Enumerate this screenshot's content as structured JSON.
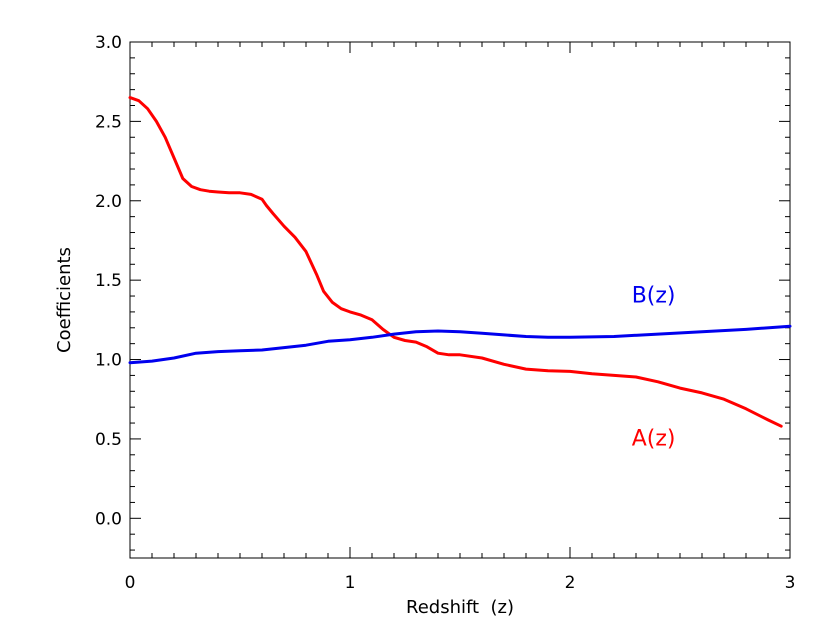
{
  "chart_data": {
    "type": "line",
    "title": "",
    "xlabel": "Redshift  (z)",
    "ylabel": "Coefficients",
    "xlim": [
      0,
      3
    ],
    "ylim": [
      -0.25,
      3.0
    ],
    "x_ticks": [
      "0",
      "1",
      "2",
      "3"
    ],
    "y_ticks": [
      "0.0",
      "0.5",
      "1.0",
      "1.5",
      "2.0",
      "2.5",
      "3.0"
    ],
    "grid": false,
    "series": [
      {
        "name": "A(z)",
        "color": "#ff0000",
        "x": [
          0.0,
          0.04,
          0.08,
          0.12,
          0.16,
          0.2,
          0.24,
          0.28,
          0.32,
          0.36,
          0.4,
          0.45,
          0.5,
          0.55,
          0.6,
          0.62,
          0.65,
          0.7,
          0.75,
          0.8,
          0.85,
          0.88,
          0.92,
          0.96,
          1.0,
          1.05,
          1.1,
          1.15,
          1.2,
          1.25,
          1.3,
          1.35,
          1.4,
          1.45,
          1.5,
          1.6,
          1.7,
          1.8,
          1.9,
          2.0,
          2.1,
          2.2,
          2.3,
          2.4,
          2.5,
          2.6,
          2.7,
          2.8,
          2.9,
          2.96
        ],
        "y": [
          2.65,
          2.63,
          2.58,
          2.5,
          2.4,
          2.27,
          2.14,
          2.09,
          2.07,
          2.06,
          2.055,
          2.05,
          2.05,
          2.04,
          2.01,
          1.97,
          1.92,
          1.84,
          1.77,
          1.68,
          1.53,
          1.43,
          1.36,
          1.32,
          1.3,
          1.28,
          1.25,
          1.19,
          1.14,
          1.12,
          1.11,
          1.08,
          1.04,
          1.03,
          1.03,
          1.01,
          0.97,
          0.94,
          0.93,
          0.925,
          0.91,
          0.9,
          0.89,
          0.86,
          0.82,
          0.79,
          0.75,
          0.69,
          0.62,
          0.58
        ]
      },
      {
        "name": "B(z)",
        "color": "#0000ee",
        "x": [
          0.0,
          0.1,
          0.2,
          0.3,
          0.4,
          0.5,
          0.6,
          0.7,
          0.8,
          0.9,
          1.0,
          1.1,
          1.2,
          1.3,
          1.4,
          1.5,
          1.6,
          1.7,
          1.8,
          1.9,
          2.0,
          2.2,
          2.4,
          2.6,
          2.8,
          3.0
        ],
        "y": [
          0.98,
          0.99,
          1.01,
          1.04,
          1.05,
          1.055,
          1.06,
          1.075,
          1.09,
          1.115,
          1.125,
          1.14,
          1.16,
          1.175,
          1.18,
          1.175,
          1.165,
          1.155,
          1.145,
          1.14,
          1.14,
          1.145,
          1.16,
          1.175,
          1.19,
          1.21
        ]
      }
    ],
    "annotations": [
      {
        "text": "B(z)",
        "x": 2.38,
        "y": 1.36,
        "color": "#0000ee"
      },
      {
        "text": "A(z)",
        "x": 2.38,
        "y": 0.46,
        "color": "#ff0000"
      }
    ]
  }
}
